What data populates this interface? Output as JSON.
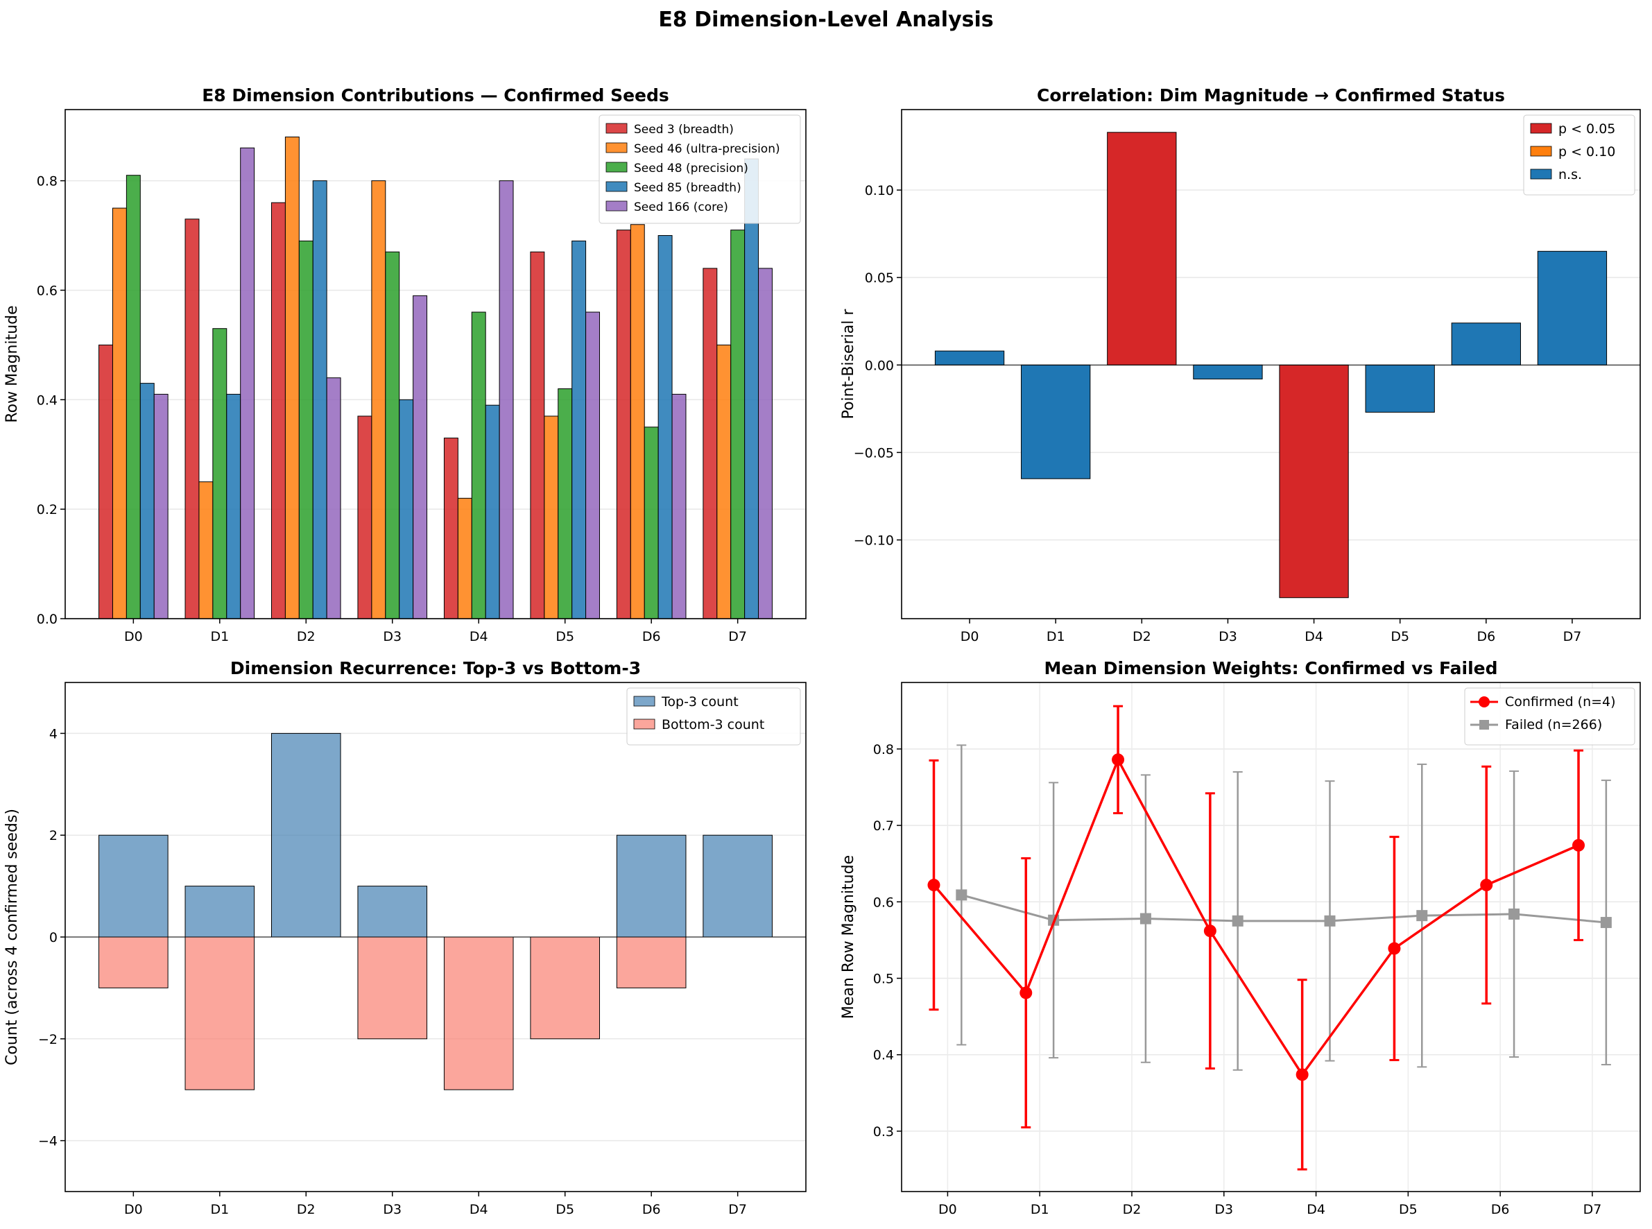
{
  "title": "E8 Dimension-Level Analysis",
  "chart_data": [
    {
      "type": "bar",
      "title": "E8 Dimension Contributions — Confirmed Seeds",
      "xlabel": "",
      "ylabel": "Row Magnitude",
      "categories": [
        "D0",
        "D1",
        "D2",
        "D3",
        "D4",
        "D5",
        "D6",
        "D7"
      ],
      "ylim": [
        0,
        0.93
      ],
      "yticks": [
        "0.0",
        "0.2",
        "0.4",
        "0.6",
        "0.8"
      ],
      "legend": "top-right",
      "grid": true,
      "series": [
        {
          "name": "Seed 3 (breadth)",
          "color": "#d62728",
          "values": [
            0.5,
            0.73,
            0.76,
            0.37,
            0.33,
            0.67,
            0.71,
            0.64
          ]
        },
        {
          "name": "Seed 46 (ultra-precision)",
          "color": "#ff7f0e",
          "values": [
            0.75,
            0.25,
            0.88,
            0.8,
            0.22,
            0.37,
            0.72,
            0.5
          ]
        },
        {
          "name": "Seed 48 (precision)",
          "color": "#2ca02c",
          "values": [
            0.81,
            0.53,
            0.69,
            0.67,
            0.56,
            0.42,
            0.35,
            0.71
          ]
        },
        {
          "name": "Seed 85 (breadth)",
          "color": "#1f77b4",
          "values": [
            0.43,
            0.41,
            0.8,
            0.4,
            0.39,
            0.69,
            0.7,
            0.84
          ]
        },
        {
          "name": "Seed 166 (core)",
          "color": "#9467bd",
          "values": [
            0.41,
            0.86,
            0.44,
            0.59,
            0.8,
            0.56,
            0.41,
            0.64
          ]
        }
      ]
    },
    {
      "type": "bar",
      "title": "Correlation: Dim Magnitude → Confirmed Status",
      "xlabel": "",
      "ylabel": "Point-Biserial r",
      "categories": [
        "D0",
        "D1",
        "D2",
        "D3",
        "D4",
        "D5",
        "D6",
        "D7"
      ],
      "ylim": [
        -0.145,
        0.146
      ],
      "yticks": [
        "−0.10",
        "−0.05",
        "0.00",
        "0.05",
        "0.10"
      ],
      "legend": "top-right",
      "grid": true,
      "values": [
        0.008,
        -0.065,
        0.133,
        -0.008,
        -0.133,
        -0.027,
        0.024,
        0.065
      ],
      "significance": [
        "n.s.",
        "n.s.",
        "p < 0.05",
        "n.s.",
        "p < 0.05",
        "n.s.",
        "n.s.",
        "n.s."
      ],
      "legend_entries": [
        {
          "name": "p < 0.05",
          "color": "#d62728"
        },
        {
          "name": "p < 0.10",
          "color": "#ff7f0e"
        },
        {
          "name": "n.s.",
          "color": "#1f77b4"
        }
      ]
    },
    {
      "type": "bar",
      "title": "Dimension Recurrence: Top-3 vs Bottom-3",
      "xlabel": "",
      "ylabel": "Count (across 4 confirmed seeds)",
      "categories": [
        "D0",
        "D1",
        "D2",
        "D3",
        "D4",
        "D5",
        "D6",
        "D7"
      ],
      "ylim": [
        -5,
        5
      ],
      "yticks": [
        "−4",
        "−2",
        "0",
        "2",
        "4"
      ],
      "legend": "top-right",
      "grid": true,
      "series": [
        {
          "name": "Top-3 count",
          "color": "#4682b4",
          "values": [
            2,
            1,
            4,
            1,
            0,
            0,
            2,
            2
          ]
        },
        {
          "name": "Bottom-3 count",
          "color": "#fa8072",
          "values": [
            -1,
            -3,
            0,
            -2,
            -3,
            -2,
            -1,
            0
          ]
        }
      ]
    },
    {
      "type": "line",
      "title": "Mean Dimension Weights: Confirmed vs Failed",
      "xlabel": "",
      "ylabel": "Mean Row Magnitude",
      "categories": [
        "D0",
        "D1",
        "D2",
        "D3",
        "D4",
        "D5",
        "D6",
        "D7"
      ],
      "ylim": [
        0.221,
        0.887
      ],
      "yticks": [
        "0.3",
        "0.4",
        "0.5",
        "0.6",
        "0.7",
        "0.8"
      ],
      "legend": "top-right",
      "grid": true,
      "series": [
        {
          "name": "Confirmed (n=4)",
          "color": "#ff0000",
          "values": [
            0.622,
            0.481,
            0.786,
            0.562,
            0.374,
            0.539,
            0.622,
            0.674
          ],
          "errors": [
            0.163,
            0.176,
            0.07,
            0.18,
            0.124,
            0.146,
            0.155,
            0.124
          ]
        },
        {
          "name": "Failed (n=266)",
          "color": "#999999",
          "values": [
            0.609,
            0.576,
            0.578,
            0.575,
            0.575,
            0.582,
            0.584,
            0.573
          ],
          "errors": [
            0.196,
            0.18,
            0.188,
            0.195,
            0.183,
            0.198,
            0.187,
            0.186
          ]
        }
      ]
    }
  ]
}
